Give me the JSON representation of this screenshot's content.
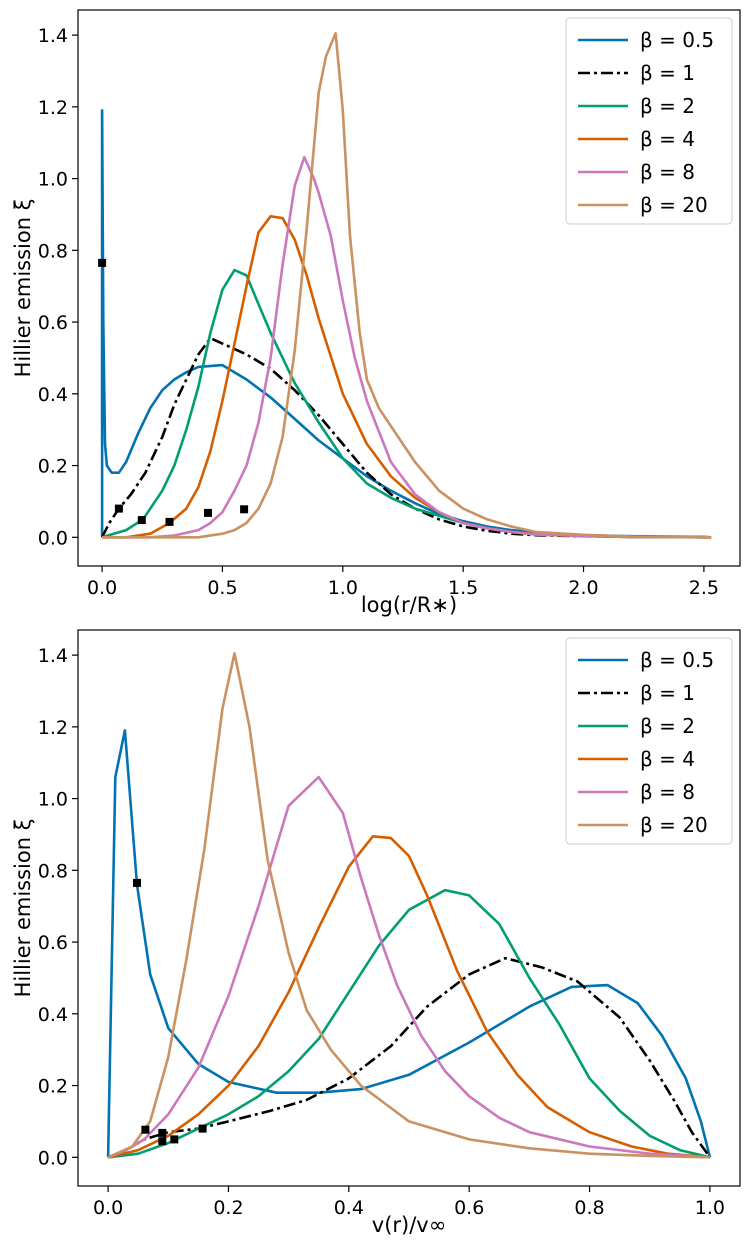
{
  "colors": {
    "beta_0_5": "#0173b2",
    "beta_1": "#000000",
    "beta_2": "#029e73",
    "beta_4": "#d55e00",
    "beta_8": "#cc78bc",
    "beta_20": "#ca9161",
    "marker": "#000000"
  },
  "chart_data": [
    {
      "type": "line",
      "xlabel": "log(r/R∗)",
      "ylabel": "Hillier emission ξ",
      "xlim": [
        -0.1,
        2.65
      ],
      "ylim": [
        -0.08,
        1.47
      ],
      "xticks": [
        "0.0",
        "0.5",
        "1.0",
        "1.5",
        "2.0",
        "2.5"
      ],
      "yticks": [
        "0.0",
        "0.2",
        "0.4",
        "0.6",
        "0.8",
        "1.0",
        "1.2",
        "1.4"
      ],
      "grid": false,
      "legend_position": "top-right",
      "series": [
        {
          "name": "β = 0.5",
          "color": "#0173b2",
          "dash": "solid",
          "x": [
            0.0,
            0.0,
            0.005,
            0.012,
            0.02,
            0.04,
            0.07,
            0.1,
            0.15,
            0.2,
            0.25,
            0.3,
            0.35,
            0.4,
            0.5,
            0.6,
            0.7,
            0.8,
            0.9,
            1.0,
            1.1,
            1.2,
            1.3,
            1.4,
            1.5,
            1.6,
            1.7,
            1.8,
            2.0,
            2.2,
            2.5,
            2.53
          ],
          "y": [
            0.0,
            1.19,
            0.6,
            0.26,
            0.2,
            0.18,
            0.18,
            0.21,
            0.29,
            0.36,
            0.41,
            0.44,
            0.46,
            0.475,
            0.48,
            0.44,
            0.39,
            0.33,
            0.27,
            0.22,
            0.17,
            0.13,
            0.095,
            0.065,
            0.045,
            0.03,
            0.02,
            0.013,
            0.006,
            0.003,
            0.001,
            0.0
          ]
        },
        {
          "name": "β = 1",
          "color": "#000000",
          "dash": "dashdot",
          "x": [
            0.0,
            0.03,
            0.07,
            0.12,
            0.18,
            0.25,
            0.3,
            0.35,
            0.4,
            0.45,
            0.5,
            0.6,
            0.7,
            0.8,
            0.9,
            1.0,
            1.1,
            1.2,
            1.3,
            1.4,
            1.5,
            1.6,
            1.7,
            1.8,
            2.0,
            2.2,
            2.53
          ],
          "y": [
            0.0,
            0.04,
            0.08,
            0.12,
            0.18,
            0.28,
            0.37,
            0.44,
            0.51,
            0.555,
            0.54,
            0.51,
            0.47,
            0.41,
            0.34,
            0.26,
            0.18,
            0.12,
            0.08,
            0.05,
            0.03,
            0.018,
            0.01,
            0.006,
            0.003,
            0.001,
            0.0
          ]
        },
        {
          "name": "β = 2",
          "color": "#029e73",
          "dash": "solid",
          "x": [
            0.0,
            0.1,
            0.17,
            0.25,
            0.3,
            0.35,
            0.4,
            0.45,
            0.5,
            0.55,
            0.6,
            0.65,
            0.7,
            0.8,
            0.9,
            1.0,
            1.1,
            1.2,
            1.3,
            1.4,
            1.5,
            1.6,
            1.7,
            1.8,
            2.0,
            2.2,
            2.53
          ],
          "y": [
            0.0,
            0.02,
            0.05,
            0.13,
            0.2,
            0.3,
            0.42,
            0.57,
            0.69,
            0.745,
            0.73,
            0.65,
            0.57,
            0.43,
            0.32,
            0.22,
            0.15,
            0.11,
            0.08,
            0.06,
            0.04,
            0.025,
            0.015,
            0.008,
            0.004,
            0.001,
            0.0
          ]
        },
        {
          "name": "β = 4",
          "color": "#d55e00",
          "dash": "solid",
          "x": [
            0.0,
            0.1,
            0.2,
            0.28,
            0.35,
            0.4,
            0.45,
            0.5,
            0.55,
            0.6,
            0.65,
            0.7,
            0.75,
            0.8,
            0.85,
            0.9,
            1.0,
            1.1,
            1.2,
            1.3,
            1.4,
            1.5,
            1.6,
            1.7,
            1.8,
            2.0,
            2.2,
            2.53
          ],
          "y": [
            0.0,
            0.0,
            0.01,
            0.04,
            0.08,
            0.14,
            0.24,
            0.38,
            0.54,
            0.7,
            0.85,
            0.895,
            0.89,
            0.83,
            0.73,
            0.61,
            0.4,
            0.26,
            0.17,
            0.11,
            0.07,
            0.04,
            0.025,
            0.015,
            0.008,
            0.003,
            0.001,
            0.0
          ]
        },
        {
          "name": "β = 8",
          "color": "#cc78bc",
          "dash": "solid",
          "x": [
            0.0,
            0.2,
            0.3,
            0.4,
            0.45,
            0.5,
            0.55,
            0.6,
            0.65,
            0.7,
            0.75,
            0.8,
            0.84,
            0.88,
            0.9,
            0.95,
            1.0,
            1.05,
            1.1,
            1.2,
            1.3,
            1.4,
            1.5,
            1.6,
            1.7,
            1.8,
            2.0,
            2.2,
            2.53
          ],
          "y": [
            0.0,
            0.0,
            0.005,
            0.02,
            0.04,
            0.07,
            0.13,
            0.2,
            0.32,
            0.5,
            0.76,
            0.98,
            1.06,
            1.0,
            0.96,
            0.84,
            0.66,
            0.5,
            0.38,
            0.21,
            0.12,
            0.07,
            0.04,
            0.025,
            0.015,
            0.008,
            0.004,
            0.001,
            0.0
          ]
        },
        {
          "name": "β = 20",
          "color": "#ca9161",
          "dash": "solid",
          "x": [
            0.0,
            0.4,
            0.5,
            0.55,
            0.6,
            0.65,
            0.7,
            0.75,
            0.8,
            0.85,
            0.9,
            0.93,
            0.97,
            1.0,
            1.03,
            1.07,
            1.1,
            1.15,
            1.2,
            1.3,
            1.4,
            1.5,
            1.6,
            1.7,
            1.8,
            2.0,
            2.2,
            2.53
          ],
          "y": [
            0.0,
            0.0,
            0.01,
            0.02,
            0.04,
            0.08,
            0.15,
            0.28,
            0.52,
            0.86,
            1.24,
            1.34,
            1.405,
            1.19,
            0.84,
            0.57,
            0.44,
            0.36,
            0.31,
            0.21,
            0.13,
            0.08,
            0.05,
            0.03,
            0.015,
            0.007,
            0.002,
            0.0
          ]
        }
      ],
      "markers": {
        "x": [
          0.0,
          0.07,
          0.165,
          0.28,
          0.44,
          0.59
        ],
        "y": [
          0.765,
          0.08,
          0.048,
          0.043,
          0.068,
          0.078
        ]
      }
    },
    {
      "type": "line",
      "xlabel": "v(r)/v∞",
      "ylabel": "Hillier emission ξ",
      "xlim": [
        -0.05,
        1.05
      ],
      "ylim": [
        -0.08,
        1.47
      ],
      "xticks": [
        "0.0",
        "0.2",
        "0.4",
        "0.6",
        "0.8",
        "1.0"
      ],
      "yticks": [
        "0.0",
        "0.2",
        "0.4",
        "0.6",
        "0.8",
        "1.0",
        "1.2",
        "1.4"
      ],
      "grid": false,
      "legend_position": "top-right",
      "series": [
        {
          "name": "β = 0.5",
          "color": "#0173b2",
          "dash": "solid",
          "x": [
            0.0,
            0.012,
            0.028,
            0.048,
            0.07,
            0.1,
            0.15,
            0.2,
            0.28,
            0.35,
            0.42,
            0.5,
            0.6,
            0.7,
            0.77,
            0.83,
            0.88,
            0.92,
            0.96,
            0.985,
            1.0
          ],
          "y": [
            0.0,
            1.06,
            1.19,
            0.76,
            0.51,
            0.36,
            0.26,
            0.21,
            0.18,
            0.18,
            0.19,
            0.23,
            0.32,
            0.42,
            0.475,
            0.48,
            0.43,
            0.34,
            0.22,
            0.1,
            0.0
          ]
        },
        {
          "name": "β = 1",
          "color": "#000000",
          "dash": "dashdot",
          "x": [
            0.0,
            0.03,
            0.06,
            0.1,
            0.15,
            0.2,
            0.27,
            0.33,
            0.4,
            0.47,
            0.53,
            0.6,
            0.66,
            0.72,
            0.78,
            0.85,
            0.9,
            0.94,
            0.97,
            1.0
          ],
          "y": [
            0.0,
            0.02,
            0.05,
            0.07,
            0.08,
            0.1,
            0.13,
            0.16,
            0.22,
            0.31,
            0.42,
            0.51,
            0.555,
            0.53,
            0.49,
            0.39,
            0.27,
            0.16,
            0.07,
            0.0
          ]
        },
        {
          "name": "β = 2",
          "color": "#029e73",
          "dash": "solid",
          "x": [
            0.0,
            0.05,
            0.1,
            0.15,
            0.2,
            0.25,
            0.3,
            0.35,
            0.4,
            0.45,
            0.5,
            0.56,
            0.6,
            0.65,
            0.7,
            0.75,
            0.8,
            0.85,
            0.9,
            0.95,
            1.0
          ],
          "y": [
            0.0,
            0.01,
            0.04,
            0.08,
            0.12,
            0.17,
            0.24,
            0.33,
            0.46,
            0.59,
            0.69,
            0.745,
            0.73,
            0.65,
            0.5,
            0.37,
            0.22,
            0.13,
            0.06,
            0.02,
            0.0
          ]
        },
        {
          "name": "β = 4",
          "color": "#d55e00",
          "dash": "solid",
          "x": [
            0.0,
            0.05,
            0.1,
            0.15,
            0.2,
            0.25,
            0.3,
            0.35,
            0.4,
            0.44,
            0.47,
            0.5,
            0.53,
            0.58,
            0.63,
            0.68,
            0.73,
            0.8,
            0.87,
            0.93,
            1.0
          ],
          "y": [
            0.0,
            0.02,
            0.06,
            0.12,
            0.2,
            0.31,
            0.46,
            0.64,
            0.81,
            0.895,
            0.89,
            0.84,
            0.73,
            0.52,
            0.35,
            0.23,
            0.14,
            0.07,
            0.03,
            0.01,
            0.0
          ]
        },
        {
          "name": "β = 8",
          "color": "#cc78bc",
          "dash": "solid",
          "x": [
            0.0,
            0.03,
            0.06,
            0.1,
            0.15,
            0.2,
            0.25,
            0.3,
            0.35,
            0.39,
            0.42,
            0.45,
            0.48,
            0.52,
            0.56,
            0.6,
            0.65,
            0.7,
            0.8,
            0.9,
            1.0
          ],
          "y": [
            0.0,
            0.02,
            0.05,
            0.12,
            0.25,
            0.45,
            0.7,
            0.98,
            1.06,
            0.96,
            0.78,
            0.62,
            0.48,
            0.34,
            0.24,
            0.17,
            0.11,
            0.07,
            0.03,
            0.01,
            0.0
          ]
        },
        {
          "name": "β = 20",
          "color": "#ca9161",
          "dash": "solid",
          "x": [
            0.0,
            0.04,
            0.07,
            0.1,
            0.13,
            0.16,
            0.19,
            0.21,
            0.235,
            0.265,
            0.3,
            0.33,
            0.37,
            0.42,
            0.5,
            0.6,
            0.7,
            0.8,
            0.9,
            1.0
          ],
          "y": [
            0.0,
            0.03,
            0.1,
            0.28,
            0.55,
            0.86,
            1.25,
            1.405,
            1.2,
            0.83,
            0.57,
            0.41,
            0.3,
            0.2,
            0.1,
            0.05,
            0.025,
            0.01,
            0.004,
            0.0
          ]
        }
      ],
      "markers": {
        "x": [
          0.048,
          0.062,
          0.09,
          0.09,
          0.11,
          0.157
        ],
        "y": [
          0.765,
          0.077,
          0.068,
          0.045,
          0.05,
          0.08
        ]
      }
    }
  ]
}
